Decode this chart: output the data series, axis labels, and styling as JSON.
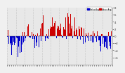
{
  "background_color": "#f0f0f0",
  "bar_color_above": "#cc0000",
  "bar_color_below": "#0000cc",
  "ylim": [
    -8,
    8
  ],
  "yticks": [
    -6,
    -4,
    -2,
    0,
    2,
    4,
    6,
    8
  ],
  "num_points": 365,
  "seed": 42,
  "legend_label_blue": "Below Avg",
  "legend_label_red": "Above Avg",
  "grid_color": "#cccccc",
  "grid_interval": 30,
  "plot_bg": "#e8e8e8"
}
